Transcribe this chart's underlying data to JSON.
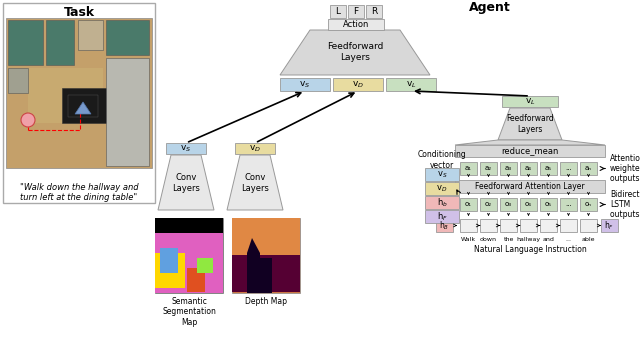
{
  "title_task": "Task",
  "title_agent": "Agent",
  "bg_color": "#ffffff",
  "quote_text": "\"Walk down the hallway and\nturn left at the dining table\"",
  "action_labels": [
    "L",
    "F",
    "R"
  ],
  "action_label": "Action",
  "feedforward_layers_label": "Feedforward\nLayers",
  "vs_color": "#b8d4e8",
  "vd_color": "#e8dca0",
  "vl_color": "#c8e0c0",
  "conv_color": "#e8e8e8",
  "ff_color": "#d8d8d8",
  "rm_color": "#d8d8d8",
  "fa_color": "#d8d8d8",
  "attn_cell_color": "#c8dcc0",
  "lstm_cell_color": "#c8dcc0",
  "word_cell_color": "#f0f0f0",
  "vs_cond_color": "#b8d4e8",
  "vd_cond_color": "#e8dca0",
  "hb_cond_color": "#f0b8b8",
  "hf_cond_color": "#d0c0e8",
  "hb_cell_color": "#f0b8b8",
  "hf_cell_color": "#d0c0e8",
  "words": [
    "Walk",
    "down",
    "the",
    "hallway",
    "and",
    "...",
    "able"
  ],
  "attn_nodes": [
    "a₁",
    "a₂",
    "a₃",
    "a₄",
    "a₅",
    "...",
    "aₙ"
  ],
  "lstm_nodes": [
    "o₁",
    "o₂",
    "o₃",
    "o₄",
    "o₅",
    "...",
    "oₙ"
  ],
  "cond_labels": [
    "v$_S$",
    "v$_D$",
    "h$_b$",
    "h$_F$"
  ],
  "semantic_seg_label": "Semantic\nSegmentation\nMap",
  "depth_map_label": "Depth Map",
  "natural_lang_label": "Natural Language Instruction",
  "conditioning_vector_label": "Conditioning\nvector",
  "reduce_mean_label": "reduce_mean",
  "feedforward_attention_label": "Feedforward Attention Layer",
  "feedforward_layers_label2": "Feedforward\nLayers",
  "bidirectional_lstm_label": "Bidirectional\nLSTM\noutputs, oᵢ",
  "attention_weighted_label": "Attention\nweighted\noutputs, aᵢ",
  "conv_layers_label": "Conv\nLayers"
}
